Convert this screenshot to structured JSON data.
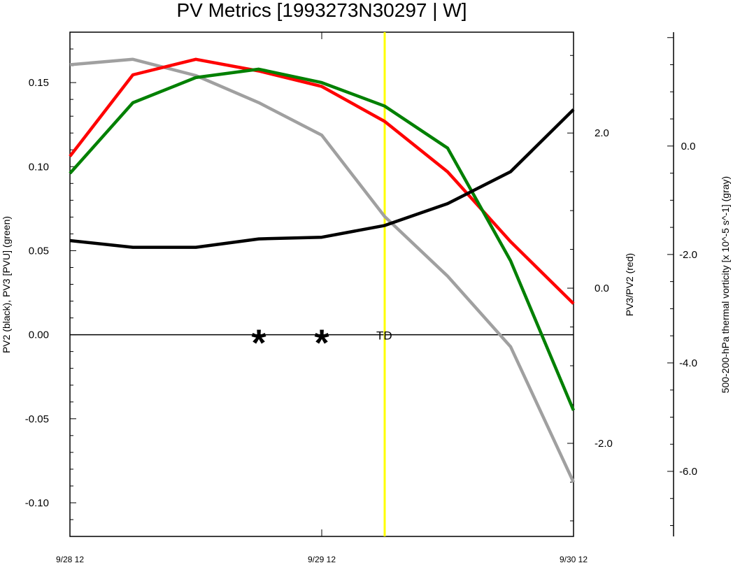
{
  "chart_data": {
    "type": "line",
    "title": "PV Metrics [1993273N30297 | W]",
    "xlabel": "",
    "x_ticks": [
      "9/28 12",
      "9/29 12",
      "9/30 12"
    ],
    "x": [
      0,
      3,
      6,
      9,
      12,
      15,
      18,
      21,
      24
    ],
    "x_unit_note": "hours after 9/28 12 (time axis, 3-hourly points)",
    "left_axis": {
      "label": "PV2 (black), PV3 [PVU] (green)",
      "ylim": [
        -0.12,
        0.18
      ],
      "ticks": [
        "0.15",
        "0.10",
        "0.05",
        "0.00",
        "-0.05",
        "-0.10"
      ],
      "tick_values": [
        0.15,
        0.1,
        0.05,
        0.0,
        -0.05,
        -0.1
      ]
    },
    "right_axis_1": {
      "label": "PV3/PV2 (red)",
      "ylim": [
        -3.2,
        3.3
      ],
      "ticks": [
        "2.0",
        "0.0",
        "-2.0"
      ],
      "tick_values": [
        2.0,
        0.0,
        -2.0
      ]
    },
    "right_axis_2": {
      "label": "500-200-hPa thermal vorticity [x 10^-5 s^-1] (gray)",
      "ylim": [
        -7.2,
        2.1
      ],
      "ticks": [
        "0.0",
        "-2.0",
        "-4.0",
        "-6.0"
      ],
      "tick_values": [
        0.0,
        -2.0,
        -4.0,
        -6.0
      ]
    },
    "series": [
      {
        "name": "PV2",
        "color": "#000000",
        "axis": "left",
        "values": [
          0.056,
          0.052,
          0.052,
          0.057,
          0.058,
          0.065,
          0.078,
          0.097,
          0.134
        ]
      },
      {
        "name": "PV3",
        "color": "#008000",
        "axis": "left",
        "values": [
          0.096,
          0.138,
          0.153,
          0.158,
          0.15,
          0.136,
          0.111,
          0.044,
          -0.045
        ]
      },
      {
        "name": "PV3/PV2",
        "color": "#ff0000",
        "axis": "right_axis_1",
        "values": [
          1.7,
          2.75,
          2.95,
          2.8,
          2.6,
          2.15,
          1.5,
          0.6,
          -0.2
        ]
      },
      {
        "name": "500-200-hPa thermal vorticity",
        "color": "#a0a0a0",
        "axis": "right_axis_2",
        "values": [
          1.5,
          1.6,
          1.3,
          0.8,
          0.2,
          -1.3,
          -2.4,
          -3.7,
          -6.2
        ]
      }
    ],
    "zero_line": 0.0,
    "markers": [
      {
        "symbol": "*",
        "x": 9,
        "y": 0.0
      },
      {
        "symbol": "*",
        "x": 12,
        "y": 0.0
      }
    ],
    "annotations": [
      {
        "text": "TD",
        "x": 15,
        "y": 0.0
      }
    ],
    "vertical_line": {
      "x": 15,
      "color": "#ffff00"
    },
    "grid": false,
    "legend": "none"
  }
}
